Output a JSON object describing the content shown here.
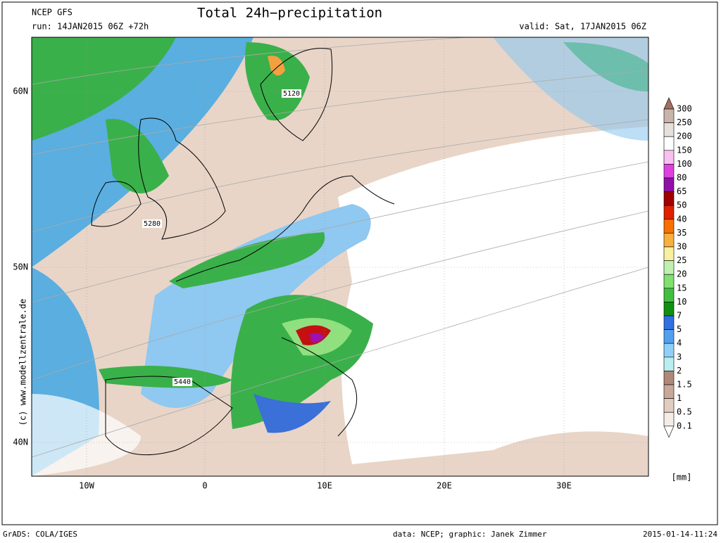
{
  "header": {
    "model": "NCEP GFS",
    "run": "run: 14JAN2015 06Z +72h",
    "title": "Total 24h−precipitation",
    "valid": "valid: Sat, 17JAN2015 06Z"
  },
  "map": {
    "lat_labels": [
      "60N",
      "50N",
      "40N"
    ],
    "lon_labels": [
      "10W",
      "0",
      "10E",
      "20E",
      "30E"
    ],
    "contour_labels": [
      "5120",
      "5280",
      "5440"
    ],
    "watermark": "(c) www.modellzentrale.de"
  },
  "legend": {
    "levels": [
      "300",
      "250",
      "200",
      "150",
      "100",
      "80",
      "65",
      "50",
      "40",
      "35",
      "30",
      "25",
      "20",
      "15",
      "10",
      "7",
      "5",
      "4",
      "3",
      "2",
      "1.5",
      "1",
      "0.5",
      "0.1"
    ],
    "colors": [
      "#a07060",
      "#c8b4a8",
      "#e6e0dc",
      "#ffffff",
      "#f8c0f0",
      "#e040e0",
      "#9010a8",
      "#a00000",
      "#e02000",
      "#f87000",
      "#f8b040",
      "#f8f0a0",
      "#c0f0b0",
      "#80e070",
      "#40c040",
      "#109010",
      "#3070e0",
      "#50a0f0",
      "#90d0f8",
      "#b8eef0",
      "#b08878",
      "#c8a898",
      "#e0ccc0",
      "#f4ece6",
      "#ffffff"
    ],
    "unit": "[mm]"
  },
  "footer": {
    "software": "GrADS: COLA/IGES",
    "credit": "data: NCEP; graphic: Janek Zimmer",
    "timestamp": "2015-01-14-11:24"
  }
}
